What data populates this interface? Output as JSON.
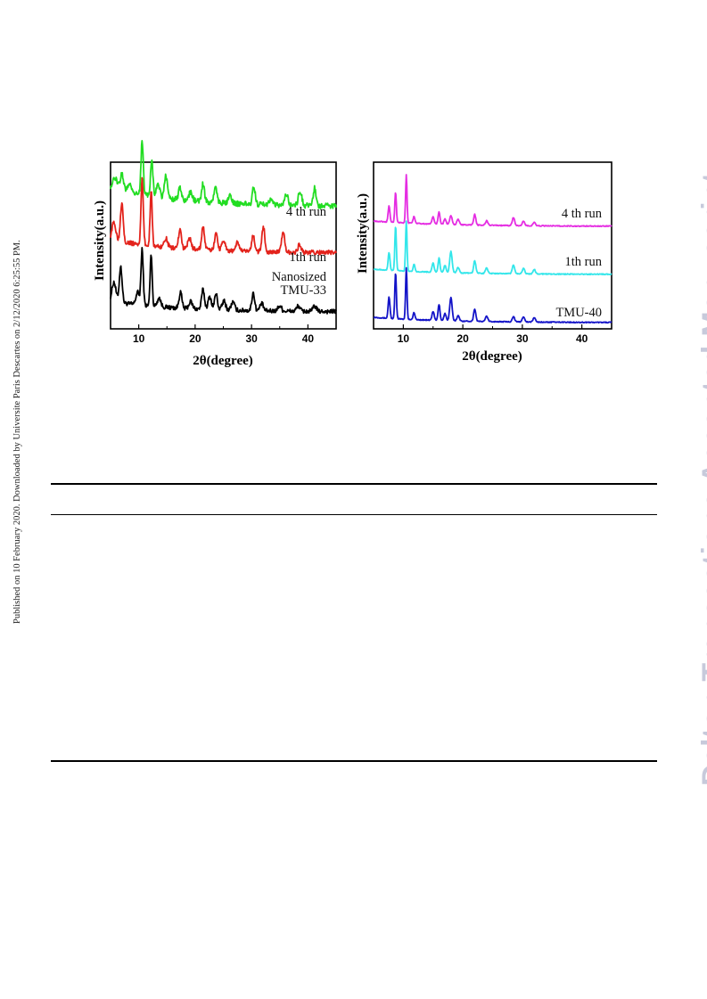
{
  "side_note": "Published on 10 February 2020. Downloaded by Universite Paris Descartes on 2/12/2020 6:25:55 PM.",
  "watermark": "Dalton Transactions Accepted Manuscript",
  "chart_data": [
    {
      "type": "line",
      "xlabel": "2θ(degree)",
      "ylabel": "Intensity(a.u.)",
      "xlim": [
        5,
        45
      ],
      "xticks": [
        10,
        20,
        30,
        40
      ],
      "y_ticks_labeled": false,
      "grid": false,
      "series": [
        {
          "name": "Nanosized TMU-33",
          "label_lines": [
            "Nanosized",
            "TMU-33"
          ],
          "color": "#000000",
          "offset": 0,
          "baseline": 12,
          "noise": 5,
          "peaks": [
            [
              5.6,
              22,
              0.35
            ],
            [
              6.8,
              40,
              0.25
            ],
            [
              9.8,
              14,
              0.3
            ],
            [
              10.6,
              62,
              0.2
            ],
            [
              12.2,
              58,
              0.18
            ],
            [
              13.6,
              10,
              0.3
            ],
            [
              17.4,
              18,
              0.25
            ],
            [
              19.2,
              8,
              0.3
            ],
            [
              21.4,
              22,
              0.25
            ],
            [
              22.6,
              14,
              0.3
            ],
            [
              23.7,
              18,
              0.25
            ],
            [
              25.1,
              10,
              0.3
            ],
            [
              26.7,
              9,
              0.3
            ],
            [
              30.3,
              20,
              0.25
            ],
            [
              31.8,
              8,
              0.3
            ],
            [
              35.0,
              6,
              0.3
            ],
            [
              38.3,
              6,
              0.3
            ],
            [
              41.2,
              6,
              0.3
            ]
          ]
        },
        {
          "name": "1th run",
          "label_lines": [
            "1th run"
          ],
          "color": "#e3231c",
          "offset": 66,
          "baseline": 15,
          "noise": 5,
          "peaks": [
            [
              5.6,
              20,
              0.35
            ],
            [
              7.0,
              44,
              0.25
            ],
            [
              10.6,
              74,
              0.2
            ],
            [
              12.2,
              62,
              0.18
            ],
            [
              14.8,
              10,
              0.3
            ],
            [
              17.3,
              20,
              0.25
            ],
            [
              19.0,
              12,
              0.3
            ],
            [
              21.4,
              26,
              0.25
            ],
            [
              23.7,
              20,
              0.25
            ],
            [
              25.0,
              12,
              0.3
            ],
            [
              27.5,
              10,
              0.3
            ],
            [
              30.3,
              18,
              0.25
            ],
            [
              32.1,
              28,
              0.25
            ],
            [
              35.6,
              24,
              0.25
            ],
            [
              38.5,
              8,
              0.3
            ]
          ]
        },
        {
          "name": "4 th run",
          "label_lines": [
            "4 th run"
          ],
          "color": "#22dd22",
          "offset": 118,
          "baseline": 22,
          "noise": 6,
          "peaks": [
            [
              5.8,
              12,
              0.35
            ],
            [
              7.0,
              18,
              0.3
            ],
            [
              8.4,
              10,
              0.3
            ],
            [
              10.6,
              60,
              0.2
            ],
            [
              12.3,
              42,
              0.2
            ],
            [
              13.4,
              16,
              0.3
            ],
            [
              14.8,
              26,
              0.25
            ],
            [
              17.3,
              14,
              0.25
            ],
            [
              19.2,
              10,
              0.3
            ],
            [
              21.4,
              20,
              0.25
            ],
            [
              23.6,
              18,
              0.25
            ],
            [
              26.2,
              10,
              0.3
            ],
            [
              30.4,
              20,
              0.25
            ],
            [
              33.5,
              8,
              0.3
            ],
            [
              36.2,
              12,
              0.3
            ],
            [
              38.6,
              16,
              0.3
            ],
            [
              41.2,
              20,
              0.25
            ]
          ]
        }
      ]
    },
    {
      "type": "line",
      "xlabel": "2θ(degree)",
      "ylabel": "Intensity(a.u.)",
      "xlim": [
        5,
        45
      ],
      "xticks": [
        10,
        20,
        30,
        40
      ],
      "y_ticks_labeled": false,
      "grid": false,
      "series": [
        {
          "name": "TMU-40",
          "label_lines": [
            "TMU-40"
          ],
          "color": "#1414c8",
          "offset": 0,
          "baseline": 6,
          "noise": 1,
          "peaks": [
            [
              7.6,
              24,
              0.15
            ],
            [
              8.7,
              52,
              0.13
            ],
            [
              10.5,
              58,
              0.12
            ],
            [
              11.8,
              8,
              0.15
            ],
            [
              15.0,
              10,
              0.18
            ],
            [
              16.0,
              18,
              0.16
            ],
            [
              17.0,
              8,
              0.18
            ],
            [
              18.0,
              26,
              0.2
            ],
            [
              19.2,
              6,
              0.2
            ],
            [
              22.0,
              14,
              0.18
            ],
            [
              24.0,
              6,
              0.2
            ],
            [
              28.5,
              6,
              0.2
            ],
            [
              30.2,
              6,
              0.2
            ],
            [
              32.0,
              5,
              0.2
            ]
          ]
        },
        {
          "name": "1th run",
          "label_lines": [
            "1th run"
          ],
          "color": "#33e6ea",
          "offset": 54,
          "baseline": 6,
          "noise": 1,
          "peaks": [
            [
              7.6,
              20,
              0.15
            ],
            [
              8.7,
              50,
              0.13
            ],
            [
              10.5,
              56,
              0.12
            ],
            [
              11.8,
              8,
              0.15
            ],
            [
              15.0,
              10,
              0.18
            ],
            [
              16.0,
              16,
              0.16
            ],
            [
              17.0,
              8,
              0.18
            ],
            [
              18.0,
              24,
              0.2
            ],
            [
              19.2,
              6,
              0.2
            ],
            [
              22.0,
              14,
              0.18
            ],
            [
              24.0,
              6,
              0.2
            ],
            [
              28.5,
              10,
              0.2
            ],
            [
              30.2,
              6,
              0.2
            ],
            [
              32.0,
              5,
              0.2
            ]
          ]
        },
        {
          "name": "4 th run",
          "label_lines": [
            "4 th run"
          ],
          "color": "#e52de2",
          "offset": 108,
          "baseline": 6,
          "noise": 1,
          "peaks": [
            [
              7.6,
              18,
              0.15
            ],
            [
              8.7,
              34,
              0.13
            ],
            [
              10.5,
              54,
              0.12
            ],
            [
              11.8,
              8,
              0.15
            ],
            [
              15.0,
              8,
              0.18
            ],
            [
              16.0,
              14,
              0.16
            ],
            [
              17.0,
              6,
              0.18
            ],
            [
              18.0,
              10,
              0.2
            ],
            [
              19.2,
              6,
              0.2
            ],
            [
              22.0,
              12,
              0.18
            ],
            [
              24.0,
              5,
              0.2
            ],
            [
              28.5,
              9,
              0.2
            ],
            [
              30.2,
              5,
              0.2
            ],
            [
              32.0,
              4,
              0.2
            ]
          ]
        }
      ]
    }
  ]
}
